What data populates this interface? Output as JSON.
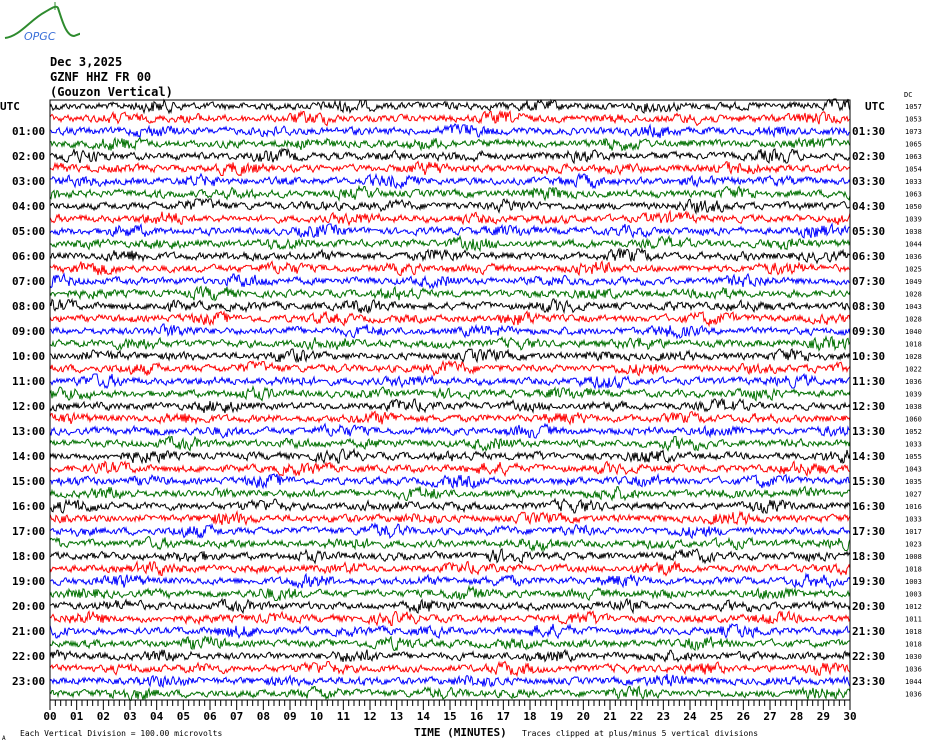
{
  "logo": {
    "text": "OPGC",
    "color_text": "#3a6fd8",
    "color_curve": "#2e8b2e"
  },
  "header": {
    "date": "Dec 3,2025",
    "station": "GZNF HHZ FR 00",
    "location": "(Gouzon Vertical)"
  },
  "chart_data": {
    "type": "line",
    "subtype": "helicorder",
    "xlabel": "TIME (MINUTES)",
    "xlim": [
      0,
      30
    ],
    "x_tick_labels": [
      "00",
      "01",
      "02",
      "03",
      "04",
      "05",
      "06",
      "07",
      "08",
      "09",
      "10",
      "11",
      "12",
      "13",
      "14",
      "15",
      "16",
      "17",
      "18",
      "19",
      "20",
      "21",
      "22",
      "23",
      "24",
      "25",
      "26",
      "27",
      "28",
      "29",
      "30"
    ],
    "left_axis_title": "UTC",
    "right_axis_title": "UTC",
    "right_corner_label": "DC",
    "left_labels": [
      "01:00",
      "02:00",
      "03:00",
      "04:00",
      "05:00",
      "06:00",
      "07:00",
      "08:00",
      "09:00",
      "10:00",
      "11:00",
      "12:00",
      "13:00",
      "14:00",
      "15:00",
      "16:00",
      "17:00",
      "18:00",
      "19:00",
      "20:00",
      "21:00",
      "22:00",
      "23:00"
    ],
    "right_labels": [
      "01:30",
      "02:30",
      "03:30",
      "04:30",
      "05:30",
      "06:30",
      "07:30",
      "08:30",
      "09:30",
      "10:30",
      "11:30",
      "12:30",
      "13:30",
      "14:30",
      "15:30",
      "16:30",
      "17:30",
      "18:30",
      "19:30",
      "20:30",
      "21:30",
      "22:30",
      "23:30"
    ],
    "trace_offsets": [
      1057,
      1053,
      1073,
      1065,
      1063,
      1054,
      1033,
      1063,
      1050,
      1039,
      1038,
      1044,
      1036,
      1025,
      1049,
      1028,
      1043,
      1028,
      1040,
      1018,
      1028,
      1022,
      1036,
      1039,
      1038,
      1060,
      1052,
      1033,
      1055,
      1043,
      1035,
      1027,
      1016,
      1033,
      1017,
      1023,
      1008,
      1018,
      1003,
      1003,
      1012,
      1011,
      1018,
      1018,
      1030,
      1036,
      1044,
      1036
    ],
    "trace_count": 48,
    "trace_colors": [
      "#000000",
      "#ff0000",
      "#0000ff",
      "#007000"
    ],
    "scale_note": "Each Vertical Division =  100.00 microvolts",
    "clip_note": "Traces clipped at plus/minus 5 vertical divisions",
    "corner_mark": "A"
  }
}
